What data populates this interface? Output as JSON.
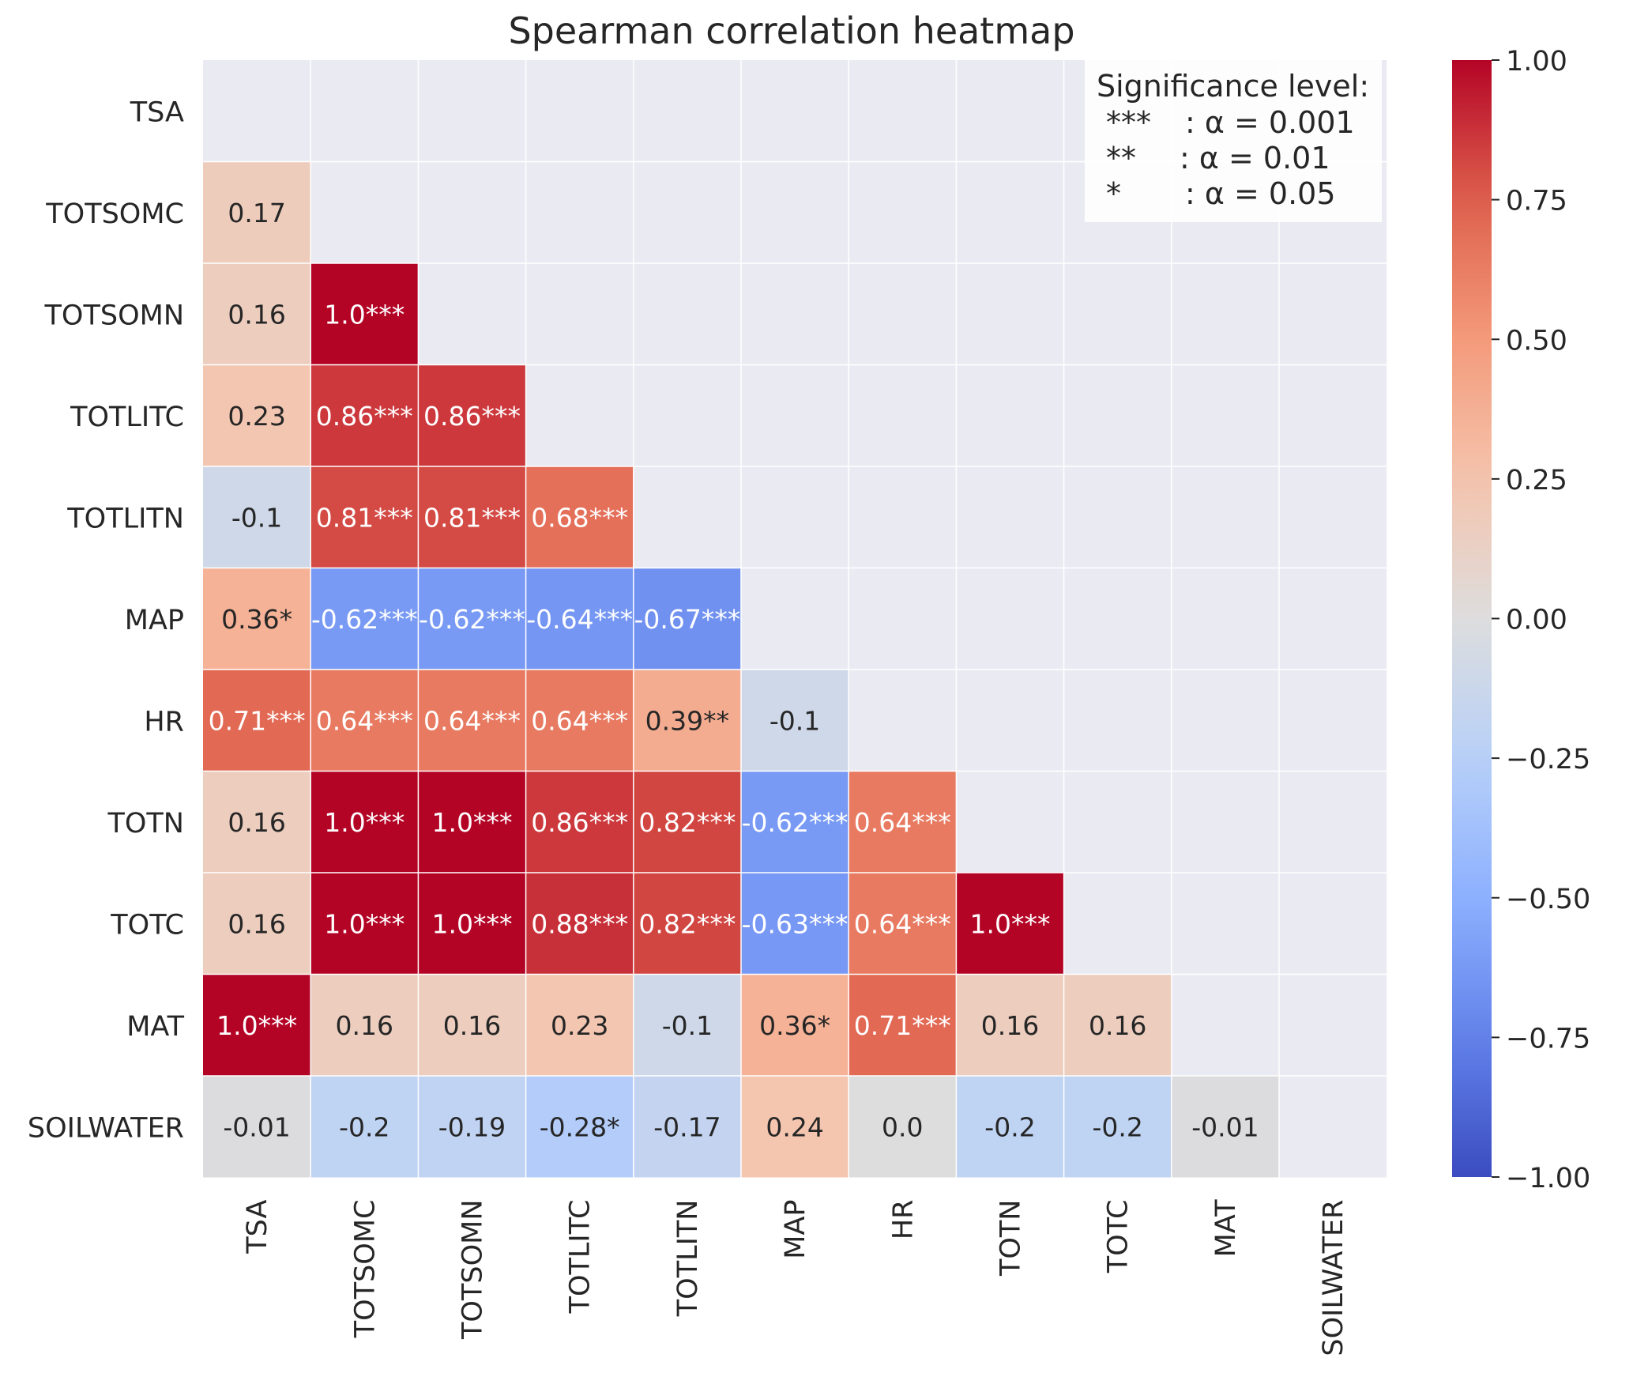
{
  "chart_data": {
    "type": "heatmap",
    "title": "Spearman correlation heatmap",
    "variables": [
      "TSA",
      "TOTSOMC",
      "TOTSOMN",
      "TOTLITC",
      "TOTLITN",
      "MAP",
      "HR",
      "TOTN",
      "TOTC",
      "MAT",
      "SOILWATER"
    ],
    "mask": "upper-triangle-and-diagonal",
    "cells": [
      [],
      [
        "0.17"
      ],
      [
        "0.16",
        "1.0***"
      ],
      [
        "0.23",
        "0.86***",
        "0.86***"
      ],
      [
        "-0.1",
        "0.81***",
        "0.81***",
        "0.68***"
      ],
      [
        "0.36*",
        "-0.62***",
        "-0.62***",
        "-0.64***",
        "-0.67***"
      ],
      [
        "0.71***",
        "0.64***",
        "0.64***",
        "0.64***",
        "0.39**",
        "-0.1"
      ],
      [
        "0.16",
        "1.0***",
        "1.0***",
        "0.86***",
        "0.82***",
        "-0.62***",
        "0.64***"
      ],
      [
        "0.16",
        "1.0***",
        "1.0***",
        "0.88***",
        "0.82***",
        "-0.63***",
        "0.64***",
        "1.0***"
      ],
      [
        "1.0***",
        "0.16",
        "0.16",
        "0.23",
        "-0.1",
        "0.36*",
        "0.71***",
        "0.16",
        "0.16"
      ],
      [
        "-0.01",
        "-0.2",
        "-0.19",
        "-0.28*",
        "-0.17",
        "0.24",
        "0.0",
        "-0.2",
        "-0.2",
        "-0.01"
      ]
    ],
    "colorbar": {
      "colormap": "coolwarm",
      "vmin": -1.0,
      "vmax": 1.0,
      "tick_values": [
        1.0,
        0.75,
        0.5,
        0.25,
        0.0,
        -0.25,
        -0.5,
        -0.75,
        -1.0
      ],
      "tick_labels": [
        "1.00",
        "0.75",
        "0.50",
        "0.25",
        "0.00",
        "−0.25",
        "−0.50",
        "−0.75",
        "−1.00"
      ]
    },
    "legend": {
      "position": "top-right",
      "title": "Significance level:",
      "entries": [
        {
          "stars": "***",
          "text": ": α = 0.001"
        },
        {
          "stars": "**",
          "text": ": α = 0.01"
        },
        {
          "stars": "*",
          "text": ": α = 0.05"
        }
      ]
    },
    "grid": true,
    "colors": {
      "background": "#eaeaf2",
      "text_dark": "#262626",
      "text_light": "#ffffff"
    }
  }
}
